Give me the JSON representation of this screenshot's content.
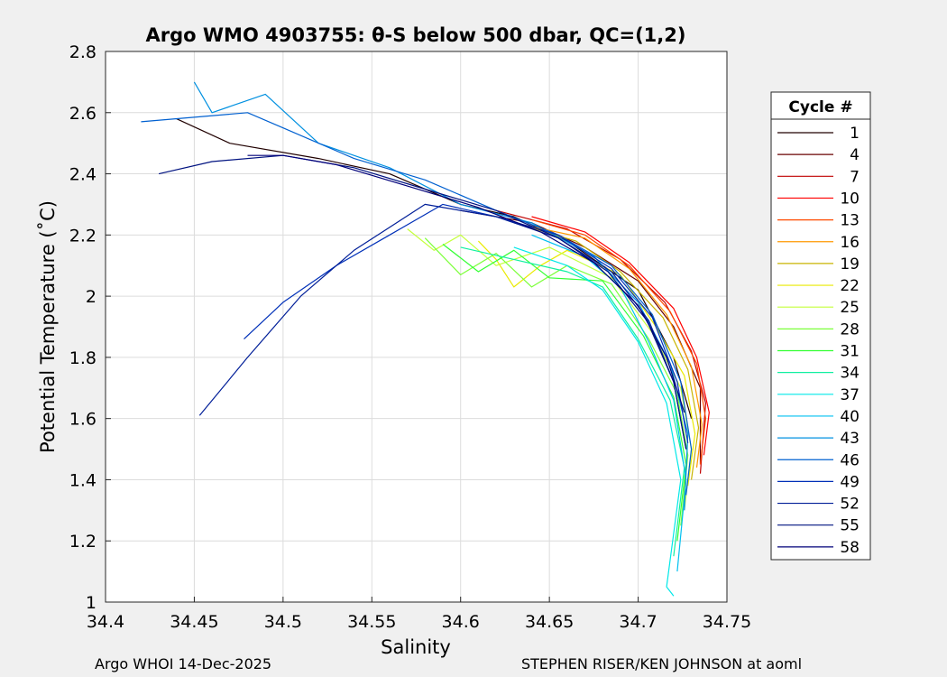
{
  "page": {
    "footer_left": "Argo WHOI 14-Dec-2025",
    "footer_right": "STEPHEN RISER/KEN JOHNSON at aoml"
  },
  "chart_data": {
    "type": "line",
    "title": "Argo WMO 4903755: θ-S below 500 dbar,  QC=(1,2)",
    "xlabel": "Salinity",
    "ylabel": "Potential Temperature (˚C)",
    "xlim": [
      34.4,
      34.75
    ],
    "ylim": [
      1.0,
      2.8
    ],
    "xticks": [
      "34.4",
      "34.45",
      "34.5",
      "34.55",
      "34.6",
      "34.65",
      "34.7",
      "34.75"
    ],
    "yticks": [
      "1",
      "1.2",
      "1.4",
      "1.6",
      "1.8",
      "2",
      "2.2",
      "2.4",
      "2.6",
      "2.8"
    ],
    "grid": true,
    "legend": {
      "title": "Cycle #",
      "placement": "right-outside",
      "entries": [
        "1",
        "4",
        "7",
        "10",
        "13",
        "16",
        "19",
        "22",
        "25",
        "28",
        "31",
        "34",
        "37",
        "40",
        "43",
        "46",
        "49",
        "52",
        "55",
        "58"
      ],
      "colors": [
        "#200000",
        "#6a0000",
        "#c00000",
        "#ff0000",
        "#ff4a00",
        "#ff9900",
        "#c8b400",
        "#eaea00",
        "#c4ff3a",
        "#7cff3a",
        "#32ff32",
        "#10f0a0",
        "#00e8e8",
        "#00c0f0",
        "#0090e0",
        "#0060d0",
        "#0030b8",
        "#001e98",
        "#001280",
        "#00007a"
      ]
    },
    "series": [
      {
        "name": "1",
        "color": "#200000",
        "points": [
          [
            34.44,
            2.58
          ],
          [
            34.47,
            2.5
          ],
          [
            34.52,
            2.45
          ],
          [
            34.56,
            2.4
          ],
          [
            34.6,
            2.3
          ],
          [
            34.63,
            2.26
          ],
          [
            34.66,
            2.18
          ],
          [
            34.7,
            2.02
          ],
          [
            34.72,
            1.8
          ],
          [
            34.73,
            1.6
          ]
        ]
      },
      {
        "name": "4",
        "color": "#6a0000",
        "points": [
          [
            34.6,
            2.28
          ],
          [
            34.64,
            2.24
          ],
          [
            34.67,
            2.16
          ],
          [
            34.7,
            2.05
          ],
          [
            34.72,
            1.9
          ],
          [
            34.735,
            1.7
          ],
          [
            34.735,
            1.45
          ]
        ]
      },
      {
        "name": "7",
        "color": "#c00000",
        "points": [
          [
            34.62,
            2.28
          ],
          [
            34.66,
            2.22
          ],
          [
            34.69,
            2.12
          ],
          [
            34.715,
            1.98
          ],
          [
            34.73,
            1.82
          ],
          [
            34.738,
            1.65
          ],
          [
            34.735,
            1.42
          ]
        ]
      },
      {
        "name": "10",
        "color": "#ff0000",
        "points": [
          [
            34.64,
            2.26
          ],
          [
            34.67,
            2.21
          ],
          [
            34.695,
            2.11
          ],
          [
            34.72,
            1.96
          ],
          [
            34.733,
            1.8
          ],
          [
            34.74,
            1.62
          ],
          [
            34.737,
            1.48
          ]
        ]
      },
      {
        "name": "13",
        "color": "#ff4a00",
        "points": [
          [
            34.64,
            2.25
          ],
          [
            34.67,
            2.2
          ],
          [
            34.695,
            2.1
          ],
          [
            34.718,
            1.95
          ],
          [
            34.733,
            1.78
          ],
          [
            34.738,
            1.6
          ],
          [
            34.735,
            1.45
          ]
        ]
      },
      {
        "name": "16",
        "color": "#ff9900",
        "points": [
          [
            34.63,
            2.24
          ],
          [
            34.67,
            2.19
          ],
          [
            34.695,
            2.09
          ],
          [
            34.716,
            1.94
          ],
          [
            34.73,
            1.77
          ],
          [
            34.736,
            1.58
          ],
          [
            34.733,
            1.44
          ]
        ]
      },
      {
        "name": "19",
        "color": "#c8b400",
        "points": [
          [
            34.63,
            2.24
          ],
          [
            34.665,
            2.18
          ],
          [
            34.69,
            2.08
          ],
          [
            34.714,
            1.93
          ],
          [
            34.728,
            1.76
          ],
          [
            34.734,
            1.57
          ],
          [
            34.73,
            1.4
          ]
        ]
      },
      {
        "name": "22",
        "color": "#eaea00",
        "points": [
          [
            34.61,
            2.18
          ],
          [
            34.62,
            2.12
          ],
          [
            34.63,
            2.03
          ],
          [
            34.645,
            2.1
          ],
          [
            34.66,
            2.15
          ],
          [
            34.69,
            2.07
          ],
          [
            34.71,
            1.9
          ],
          [
            34.726,
            1.74
          ],
          [
            34.732,
            1.55
          ],
          [
            34.728,
            1.38
          ]
        ]
      },
      {
        "name": "25",
        "color": "#c4ff3a",
        "points": [
          [
            34.57,
            2.22
          ],
          [
            34.585,
            2.15
          ],
          [
            34.6,
            2.2
          ],
          [
            34.62,
            2.1
          ],
          [
            34.65,
            2.16
          ],
          [
            34.685,
            2.06
          ],
          [
            34.708,
            1.88
          ],
          [
            34.724,
            1.7
          ],
          [
            34.73,
            1.5
          ],
          [
            34.726,
            1.3
          ]
        ]
      },
      {
        "name": "28",
        "color": "#7cff3a",
        "points": [
          [
            34.58,
            2.19
          ],
          [
            34.6,
            2.07
          ],
          [
            34.62,
            2.14
          ],
          [
            34.64,
            2.03
          ],
          [
            34.66,
            2.1
          ],
          [
            34.685,
            2.04
          ],
          [
            34.706,
            1.86
          ],
          [
            34.722,
            1.68
          ],
          [
            34.728,
            1.48
          ],
          [
            34.724,
            1.25
          ]
        ]
      },
      {
        "name": "31",
        "color": "#32ff32",
        "points": [
          [
            34.59,
            2.17
          ],
          [
            34.61,
            2.08
          ],
          [
            34.63,
            2.15
          ],
          [
            34.65,
            2.06
          ],
          [
            34.68,
            2.05
          ],
          [
            34.703,
            1.87
          ],
          [
            34.72,
            1.67
          ],
          [
            34.727,
            1.45
          ],
          [
            34.722,
            1.2
          ]
        ]
      },
      {
        "name": "34",
        "color": "#10f0a0",
        "points": [
          [
            34.6,
            2.16
          ],
          [
            34.63,
            2.12
          ],
          [
            34.66,
            2.08
          ],
          [
            34.68,
            2.03
          ],
          [
            34.7,
            1.86
          ],
          [
            34.718,
            1.66
          ],
          [
            34.726,
            1.44
          ],
          [
            34.72,
            1.15
          ]
        ]
      },
      {
        "name": "37",
        "color": "#00e8e8",
        "points": [
          [
            34.63,
            2.16
          ],
          [
            34.66,
            2.1
          ],
          [
            34.68,
            2.02
          ],
          [
            34.7,
            1.85
          ],
          [
            34.716,
            1.65
          ],
          [
            34.724,
            1.4
          ],
          [
            34.716,
            1.05
          ],
          [
            34.72,
            1.02
          ]
        ]
      },
      {
        "name": "40",
        "color": "#00c0f0",
        "points": [
          [
            34.64,
            2.2
          ],
          [
            34.67,
            2.13
          ],
          [
            34.69,
            2.03
          ],
          [
            34.706,
            1.85
          ],
          [
            34.72,
            1.66
          ],
          [
            34.727,
            1.4
          ],
          [
            34.722,
            1.1
          ]
        ]
      },
      {
        "name": "43",
        "color": "#0090e0",
        "points": [
          [
            34.45,
            2.7
          ],
          [
            34.46,
            2.6
          ],
          [
            34.49,
            2.66
          ],
          [
            34.52,
            2.5
          ],
          [
            34.56,
            2.42
          ],
          [
            34.6,
            2.3
          ],
          [
            34.64,
            2.24
          ],
          [
            34.675,
            2.13
          ],
          [
            34.7,
            1.98
          ],
          [
            34.718,
            1.78
          ],
          [
            34.728,
            1.55
          ],
          [
            34.726,
            1.3
          ]
        ]
      },
      {
        "name": "46",
        "color": "#0060d0",
        "points": [
          [
            34.42,
            2.57
          ],
          [
            34.48,
            2.6
          ],
          [
            34.5,
            2.55
          ],
          [
            34.54,
            2.45
          ],
          [
            34.58,
            2.38
          ],
          [
            34.62,
            2.28
          ],
          [
            34.655,
            2.2
          ],
          [
            34.685,
            2.1
          ],
          [
            34.708,
            1.94
          ],
          [
            34.724,
            1.72
          ],
          [
            34.73,
            1.5
          ],
          [
            34.727,
            1.35
          ]
        ]
      },
      {
        "name": "49",
        "color": "#0030b8",
        "points": [
          [
            34.478,
            1.86
          ],
          [
            34.5,
            1.98
          ],
          [
            34.53,
            2.1
          ],
          [
            34.56,
            2.2
          ],
          [
            34.59,
            2.3
          ],
          [
            34.62,
            2.26
          ],
          [
            34.655,
            2.2
          ],
          [
            34.685,
            2.09
          ],
          [
            34.708,
            1.93
          ],
          [
            34.722,
            1.72
          ],
          [
            34.728,
            1.52
          ]
        ]
      },
      {
        "name": "52",
        "color": "#001e98",
        "points": [
          [
            34.453,
            1.61
          ],
          [
            34.48,
            1.8
          ],
          [
            34.51,
            2.0
          ],
          [
            34.54,
            2.15
          ],
          [
            34.58,
            2.3
          ],
          [
            34.62,
            2.26
          ],
          [
            34.655,
            2.19
          ],
          [
            34.685,
            2.08
          ],
          [
            34.706,
            1.92
          ],
          [
            34.72,
            1.72
          ],
          [
            34.727,
            1.5
          ]
        ]
      },
      {
        "name": "55",
        "color": "#001280",
        "points": [
          [
            34.43,
            2.4
          ],
          [
            34.46,
            2.44
          ],
          [
            34.5,
            2.46
          ],
          [
            34.54,
            2.42
          ],
          [
            34.58,
            2.35
          ],
          [
            34.62,
            2.28
          ],
          [
            34.655,
            2.19
          ],
          [
            34.683,
            2.08
          ],
          [
            34.705,
            1.92
          ],
          [
            34.72,
            1.72
          ],
          [
            34.727,
            1.5
          ]
        ]
      },
      {
        "name": "58",
        "color": "#00007a",
        "points": [
          [
            34.48,
            2.46
          ],
          [
            34.5,
            2.46
          ],
          [
            34.53,
            2.43
          ],
          [
            34.57,
            2.36
          ],
          [
            34.61,
            2.29
          ],
          [
            34.645,
            2.21
          ],
          [
            34.675,
            2.11
          ],
          [
            34.7,
            1.97
          ],
          [
            34.716,
            1.8
          ],
          [
            34.726,
            1.62
          ]
        ]
      }
    ]
  }
}
